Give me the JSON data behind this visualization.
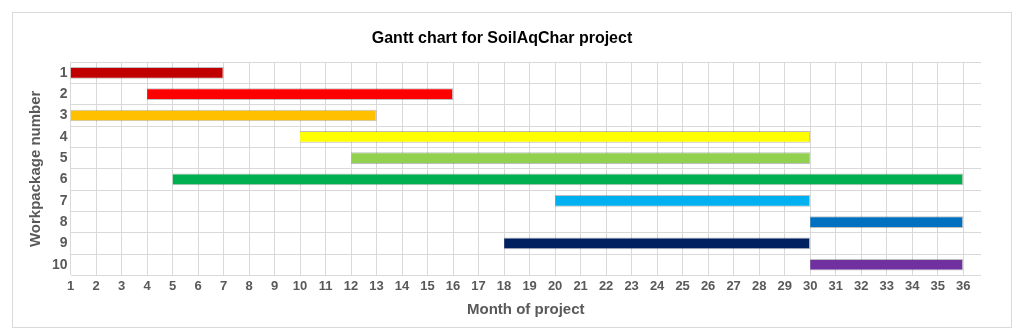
{
  "chart_data": {
    "type": "bar",
    "orientation": "horizontal",
    "title": "Gantt chart for SoilAqChar project",
    "xlabel": "Month of project",
    "ylabel": "Workpackage number",
    "categories": [
      "1",
      "2",
      "3",
      "4",
      "5",
      "6",
      "7",
      "8",
      "9",
      "10"
    ],
    "base": [
      1,
      4,
      1,
      10,
      12,
      5,
      20,
      30,
      18,
      30
    ],
    "values": [
      6,
      12,
      12,
      20,
      18,
      31,
      10,
      6,
      12,
      6
    ],
    "colors": [
      "#c00000",
      "#ff0000",
      "#ffc000",
      "#ffff00",
      "#92d050",
      "#00b050",
      "#00b0f0",
      "#0070c0",
      "#002060",
      "#7030a0"
    ],
    "xlim": [
      1,
      36.7
    ],
    "xticks": [
      1,
      2,
      3,
      4,
      5,
      6,
      7,
      8,
      9,
      10,
      11,
      12,
      13,
      14,
      15,
      16,
      17,
      18,
      19,
      20,
      21,
      22,
      23,
      24,
      25,
      26,
      27,
      28,
      29,
      30,
      31,
      32,
      33,
      34,
      35,
      36
    ],
    "grid": true,
    "legend": false
  }
}
